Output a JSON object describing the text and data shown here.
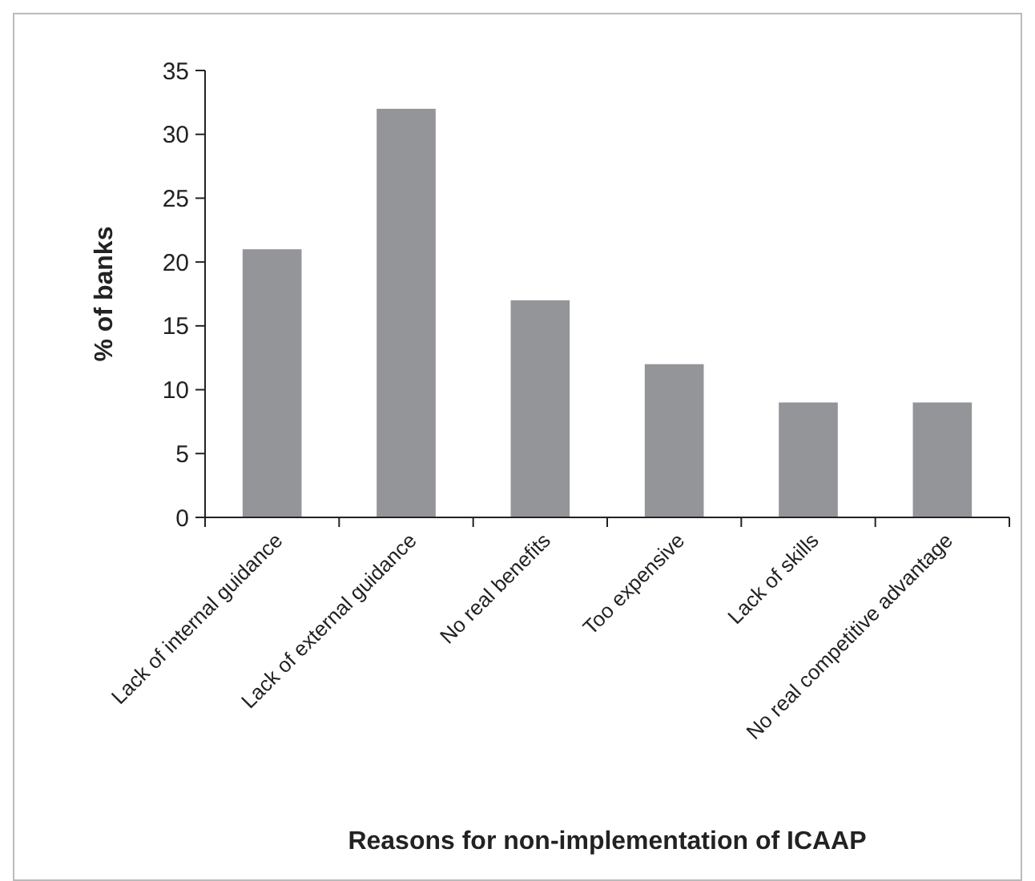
{
  "chart_data": {
    "type": "bar",
    "xlabel": "Reasons for non-implementation of ICAAP",
    "ylabel": "% of banks",
    "categories": [
      "Lack of internal guidance",
      "Lack of external guidance",
      "No real benefits",
      "Too expensive",
      "Lack of skills",
      "No real competitive advantage"
    ],
    "values": [
      21,
      32,
      17,
      12,
      9,
      9
    ],
    "color": "#939598",
    "ylim": [
      0,
      35
    ],
    "yticks": [
      0,
      5,
      10,
      15,
      20,
      25,
      30,
      35
    ],
    "grid": false
  }
}
